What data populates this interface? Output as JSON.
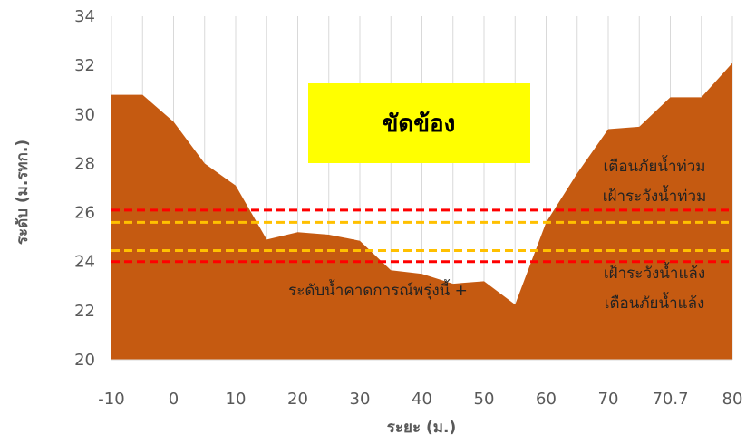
{
  "chart_data": {
    "type": "area",
    "title": "",
    "xlabel": "ระยะ (ม.)",
    "ylabel": "ระดับ (ม.รทก.)",
    "ylim": [
      20,
      34
    ],
    "yticks": [
      20,
      22,
      24,
      26,
      28,
      30,
      32,
      34
    ],
    "x_tick_labels": [
      "-10",
      "0",
      "10",
      "20",
      "30",
      "40",
      "50",
      "60",
      "70",
      "70.7",
      "80"
    ],
    "grid": "vertical",
    "colors": {
      "area": "#c55a11",
      "warning": "#ff0000",
      "watch": "#ffc000",
      "station_box": "#ffff00",
      "grid": "#d9d9d9",
      "tick": "#595959"
    },
    "series": [
      {
        "x": [
          "-10",
          "-5",
          "0",
          "5",
          "10",
          "15",
          "20",
          "25",
          "30",
          "35",
          "40",
          "45",
          "50",
          "55",
          "60",
          "65",
          "70",
          "75",
          "70.7",
          "75",
          "80"
        ],
        "y": [
          30.8,
          30.8,
          29.7,
          28.0,
          27.1,
          24.9,
          25.2,
          25.1,
          24.85,
          23.65,
          23.5,
          23.1,
          23.2,
          22.25,
          25.6,
          27.6,
          29.4,
          29.5,
          30.7,
          30.7,
          32.1
        ]
      }
    ],
    "reference_lines": [
      {
        "value": 26.1,
        "color": "#ff0000"
      },
      {
        "value": 25.6,
        "color": "#ffc000"
      },
      {
        "value": 24.45,
        "color": "#ffc000"
      },
      {
        "value": 24.0,
        "color": "#ff0000"
      }
    ],
    "annotations": {
      "station": "ขัดข้อง",
      "flood_warning": "เตือนภัยน้ำท่วม",
      "flood_watch": "เฝ้าระวังน้ำท่วม",
      "drought_watch": "เฝ้าระวังน้ำแล้ง",
      "drought_warning": "เตือนภัยน้ำแล้ง",
      "forecast": "ระดับน้ำคาดการณ์พรุ่งนี้ +"
    }
  }
}
